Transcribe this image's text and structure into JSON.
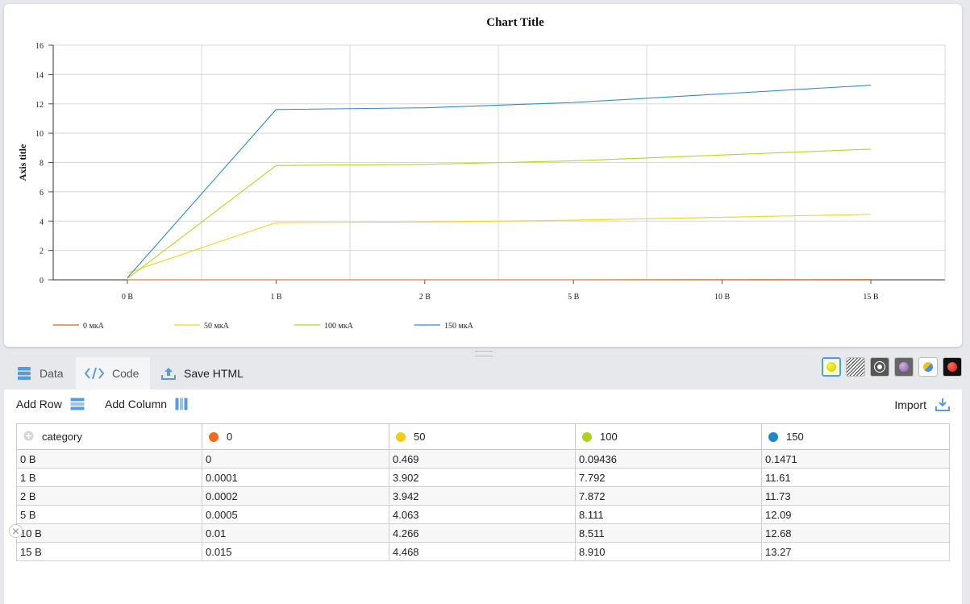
{
  "chart_data": {
    "type": "line",
    "title": "Chart Title",
    "ylabel": "Axis title",
    "xlabel": "",
    "categories": [
      "0 В",
      "1 В",
      "2 В",
      "5 В",
      "10 В",
      "15 В"
    ],
    "ylim": [
      0,
      16
    ],
    "yticks": [
      0,
      2,
      4,
      6,
      8,
      10,
      12,
      14,
      16
    ],
    "grid": true,
    "legend_position": "bottom-left",
    "series": [
      {
        "name": "0 мкА",
        "color": "#d9621e",
        "values": [
          0,
          0.0001,
          0.0002,
          0.0005,
          0.01,
          0.015
        ]
      },
      {
        "name": "50 мкА",
        "color": "#f2d31b",
        "values": [
          0.469,
          3.902,
          3.942,
          4.063,
          4.266,
          4.468
        ]
      },
      {
        "name": "100 мкА",
        "color": "#b6d71e",
        "values": [
          0.09436,
          7.792,
          7.872,
          8.111,
          8.511,
          8.91
        ]
      },
      {
        "name": "150 мкА",
        "color": "#2c8ccc",
        "values": [
          0.1471,
          11.61,
          11.73,
          12.09,
          12.68,
          13.27
        ]
      }
    ]
  },
  "tabs": {
    "data": "Data",
    "code": "Code",
    "save_html": "Save HTML"
  },
  "themes": [
    {
      "name": "theme-default",
      "colors": [
        "#e8e81a",
        "#2a2a2a"
      ]
    },
    {
      "name": "theme-pattern",
      "colors": [
        "#333333"
      ]
    },
    {
      "name": "theme-dark-circle",
      "colors": [
        "#555555"
      ]
    },
    {
      "name": "theme-purple",
      "colors": [
        "#9b6ab3"
      ]
    },
    {
      "name": "theme-yellow-blue",
      "colors": [
        "#f2c21b",
        "#4a90d9"
      ]
    },
    {
      "name": "theme-red",
      "colors": [
        "#e03a2f"
      ]
    }
  ],
  "toolbar": {
    "add_row": "Add Row",
    "add_column": "Add Column",
    "import": "Import"
  },
  "table": {
    "columns": [
      {
        "label": "category",
        "color": ""
      },
      {
        "label": "0",
        "color": "#f26a1b"
      },
      {
        "label": "50",
        "color": "#f2cd17"
      },
      {
        "label": "100",
        "color": "#acd11e"
      },
      {
        "label": "150",
        "color": "#1e88c9"
      }
    ],
    "rows": [
      [
        "0 В",
        "0",
        "0.469",
        "0.09436",
        "0.1471"
      ],
      [
        "1 В",
        "0.0001",
        "3.902",
        "7.792",
        "11.61"
      ],
      [
        "2 В",
        "0.0002",
        "3.942",
        "7.872",
        "11.73"
      ],
      [
        "5 В",
        "0.0005",
        "4.063",
        "8.111",
        "12.09"
      ],
      [
        "10 В",
        "0.01",
        "4.266",
        "8.511",
        "12.68"
      ],
      [
        "15 В",
        "0.015",
        "4.468",
        "8.910",
        "13.27"
      ]
    ]
  }
}
